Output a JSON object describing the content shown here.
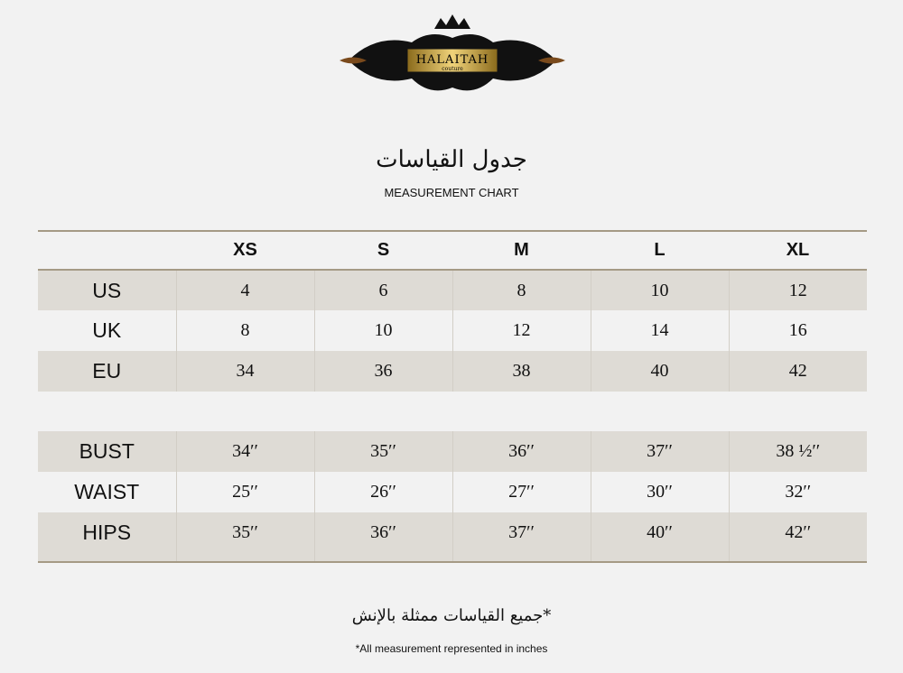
{
  "logo": {
    "brand": "HALAITAH",
    "sub": "couture",
    "colors": {
      "gold": "#c9a43a",
      "black": "#111111"
    }
  },
  "title_ar": "جدول القياسات",
  "title_en": "MEASUREMENT CHART",
  "sizes": [
    "XS",
    "S",
    "M",
    "L",
    "XL"
  ],
  "size_rows": [
    {
      "label": "US",
      "values": [
        "4",
        "6",
        "8",
        "10",
        "12"
      ]
    },
    {
      "label": "UK",
      "values": [
        "8",
        "10",
        "12",
        "14",
        "16"
      ]
    },
    {
      "label": "EU",
      "values": [
        "34",
        "36",
        "38",
        "40",
        "42"
      ]
    }
  ],
  "measure_rows": [
    {
      "label": "BUST",
      "values": [
        "34′′",
        "35′′",
        "36′′",
        "37′′",
        "38 ½′′"
      ]
    },
    {
      "label": "WAIST",
      "values": [
        "25′′",
        "26′′",
        "27′′",
        "30′′",
        "32′′"
      ]
    },
    {
      "label": "HIPS",
      "values": [
        "35′′",
        "36′′",
        "37′′",
        "40′′",
        "42′′"
      ]
    }
  ],
  "footnote_ar": "*جميع القياسات ممثلة بالإنش",
  "footnote_en": "*All measurement represented in inches"
}
